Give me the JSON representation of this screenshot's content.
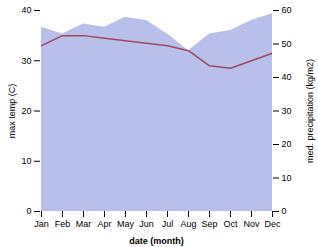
{
  "chart_data": {
    "type": "line",
    "categories": [
      "Jan",
      "Feb",
      "Mar",
      "Apr",
      "May",
      "Jun",
      "Jul",
      "Aug",
      "Sep",
      "Oct",
      "Nov",
      "Dec"
    ],
    "series": [
      {
        "type": "area",
        "axis": "y2",
        "color": "#b0b8e8",
        "values": [
          55,
          53,
          56,
          55,
          58,
          57,
          53,
          48,
          53,
          54,
          57,
          59
        ]
      },
      {
        "type": "line",
        "color": "#9e4a5a",
        "values": [
          33,
          35,
          35,
          34.5,
          34,
          33.5,
          33,
          32,
          29,
          28.5,
          30,
          31.5
        ]
      }
    ],
    "xlabel": "date (month)",
    "ylabel": "max temp (C)",
    "y2label": "med. precipitation (kg/m2)",
    "ylim": [
      0,
      40
    ],
    "yticks": [
      0,
      10,
      20,
      30,
      40
    ],
    "y2lim": [
      0,
      60
    ],
    "y2ticks": [
      0,
      10,
      20,
      30,
      40,
      50,
      60
    ],
    "grid": false
  }
}
